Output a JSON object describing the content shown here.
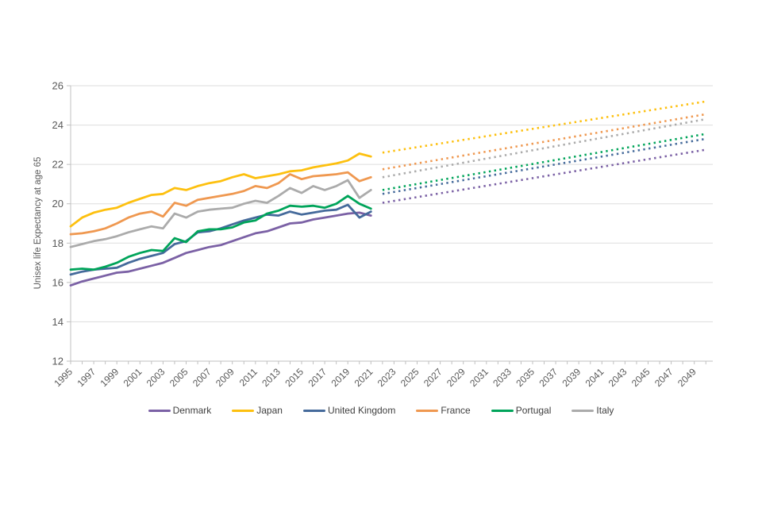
{
  "page": {
    "background": "#ffffff"
  },
  "axis_colors": {
    "grid": "#dddddd",
    "axis": "#c0c0c0",
    "tick_text": "#595959",
    "axis_title_text": "#595959",
    "legend_text": "#404040"
  },
  "chart_data": {
    "type": "line",
    "title": "",
    "xlabel": "",
    "ylabel": "Unisex life Expectancy at age 65",
    "ylim": [
      12,
      26
    ],
    "y_ticks": [
      12,
      14,
      16,
      18,
      20,
      22,
      24,
      26
    ],
    "grid": "horizontal gridlines on",
    "legend_position": "bottom center",
    "x_axis": {
      "start_year": 1995,
      "end_year": 2050,
      "tick_every_years": 1,
      "label_years": [
        1995,
        1997,
        1999,
        2001,
        2003,
        2005,
        2007,
        2009,
        2011,
        2013,
        2015,
        2017,
        2019,
        2021,
        2023,
        2025,
        2027,
        2029,
        2031,
        2033,
        2035,
        2037,
        2039,
        2041,
        2043,
        2045,
        2047,
        2049
      ]
    },
    "historical_years": [
      1995,
      1996,
      1997,
      1998,
      1999,
      2000,
      2001,
      2002,
      2003,
      2004,
      2005,
      2006,
      2007,
      2008,
      2009,
      2010,
      2011,
      2012,
      2013,
      2014,
      2015,
      2016,
      2017,
      2018,
      2019,
      2020,
      2021
    ],
    "projection_note": "dotted lines are projections from 2022 to 2050, linear ramp",
    "series": [
      {
        "name": "Denmark",
        "color": "#7b61a5",
        "historical": [
          15.85,
          16.05,
          16.2,
          16.35,
          16.5,
          16.55,
          16.7,
          16.85,
          17.0,
          17.25,
          17.5,
          17.65,
          17.8,
          17.9,
          18.1,
          18.3,
          18.5,
          18.6,
          18.8,
          19.0,
          19.05,
          19.2,
          19.3,
          19.4,
          19.5,
          19.55,
          19.4
        ],
        "projection": {
          "start_year": 2022,
          "end_year": 2050,
          "start_value": 20.05,
          "end_value": 22.75
        }
      },
      {
        "name": "Japan",
        "color": "#fdc00f",
        "historical": [
          18.85,
          19.3,
          19.55,
          19.7,
          19.8,
          20.05,
          20.25,
          20.45,
          20.5,
          20.8,
          20.7,
          20.9,
          21.05,
          21.15,
          21.35,
          21.5,
          21.3,
          21.4,
          21.5,
          21.65,
          21.7,
          21.85,
          21.95,
          22.05,
          22.2,
          22.55,
          22.4
        ],
        "projection": {
          "start_year": 2022,
          "end_year": 2050,
          "start_value": 22.6,
          "end_value": 25.2
        }
      },
      {
        "name": "United Kingdom",
        "color": "#456a9b",
        "historical": [
          16.4,
          16.55,
          16.65,
          16.7,
          16.75,
          17.0,
          17.2,
          17.35,
          17.5,
          17.95,
          18.1,
          18.55,
          18.6,
          18.75,
          18.95,
          19.15,
          19.3,
          19.45,
          19.4,
          19.6,
          19.45,
          19.55,
          19.65,
          19.7,
          19.95,
          19.3,
          19.6
        ],
        "projection": {
          "start_year": 2022,
          "end_year": 2050,
          "start_value": 20.5,
          "end_value": 23.3
        }
      },
      {
        "name": "France",
        "color": "#ef9850",
        "historical": [
          18.45,
          18.5,
          18.6,
          18.75,
          19.0,
          19.3,
          19.5,
          19.6,
          19.35,
          20.05,
          19.9,
          20.2,
          20.3,
          20.4,
          20.5,
          20.65,
          20.9,
          20.8,
          21.05,
          21.5,
          21.25,
          21.4,
          21.45,
          21.5,
          21.6,
          21.15,
          21.35
        ],
        "projection": {
          "start_year": 2022,
          "end_year": 2050,
          "start_value": 21.75,
          "end_value": 24.55
        }
      },
      {
        "name": "Portugal",
        "color": "#00a45a",
        "historical": [
          16.65,
          16.7,
          16.65,
          16.8,
          17.0,
          17.3,
          17.5,
          17.65,
          17.6,
          18.25,
          18.05,
          18.6,
          18.7,
          18.7,
          18.8,
          19.05,
          19.15,
          19.5,
          19.65,
          19.9,
          19.85,
          19.9,
          19.8,
          20.0,
          20.4,
          20.0,
          19.75
        ],
        "projection": {
          "start_year": 2022,
          "end_year": 2050,
          "start_value": 20.7,
          "end_value": 23.55
        }
      },
      {
        "name": "Italy",
        "color": "#ababab",
        "historical": [
          17.8,
          17.95,
          18.1,
          18.2,
          18.35,
          18.55,
          18.7,
          18.85,
          18.75,
          19.5,
          19.3,
          19.6,
          19.7,
          19.75,
          19.8,
          20.0,
          20.15,
          20.05,
          20.4,
          20.8,
          20.55,
          20.9,
          20.7,
          20.9,
          21.2,
          20.3,
          20.7
        ],
        "projection": {
          "start_year": 2022,
          "end_year": 2050,
          "start_value": 21.35,
          "end_value": 24.3
        }
      }
    ]
  }
}
